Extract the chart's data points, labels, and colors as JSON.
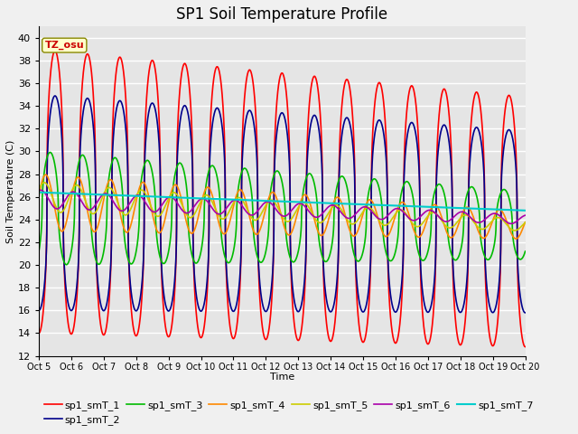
{
  "title": "SP1 Soil Temperature Profile",
  "xlabel": "Time",
  "ylabel": "Soil Temperature (C)",
  "annotation_text": "TZ_osu",
  "ylim": [
    12,
    41
  ],
  "yticks": [
    12,
    14,
    16,
    18,
    20,
    22,
    24,
    26,
    28,
    30,
    32,
    34,
    36,
    38,
    40
  ],
  "xlabels": [
    "Oct 5",
    "Oct 6",
    "Oct 7",
    "Oct 8",
    "Oct 9",
    "Oct 10",
    "Oct 11",
    "Oct 12",
    "Oct 13",
    "Oct 14",
    "Oct 15",
    "Oct 16",
    "Oct 17",
    "Oct 18",
    "Oct 19",
    "Oct 20"
  ],
  "legend_entries": [
    "sp1_smT_1",
    "sp1_smT_2",
    "sp1_smT_3",
    "sp1_smT_4",
    "sp1_smT_5",
    "sp1_smT_6",
    "sp1_smT_7"
  ],
  "colors": [
    "#ff0000",
    "#00008b",
    "#00bb00",
    "#ff8800",
    "#cccc00",
    "#aa00aa",
    "#00cccc"
  ],
  "background_color": "#e5e5e5",
  "grid_color": "#ffffff",
  "fig_bg_color": "#f0f0f0",
  "title_fontsize": 12,
  "axis_fontsize": 8,
  "legend_fontsize": 8
}
